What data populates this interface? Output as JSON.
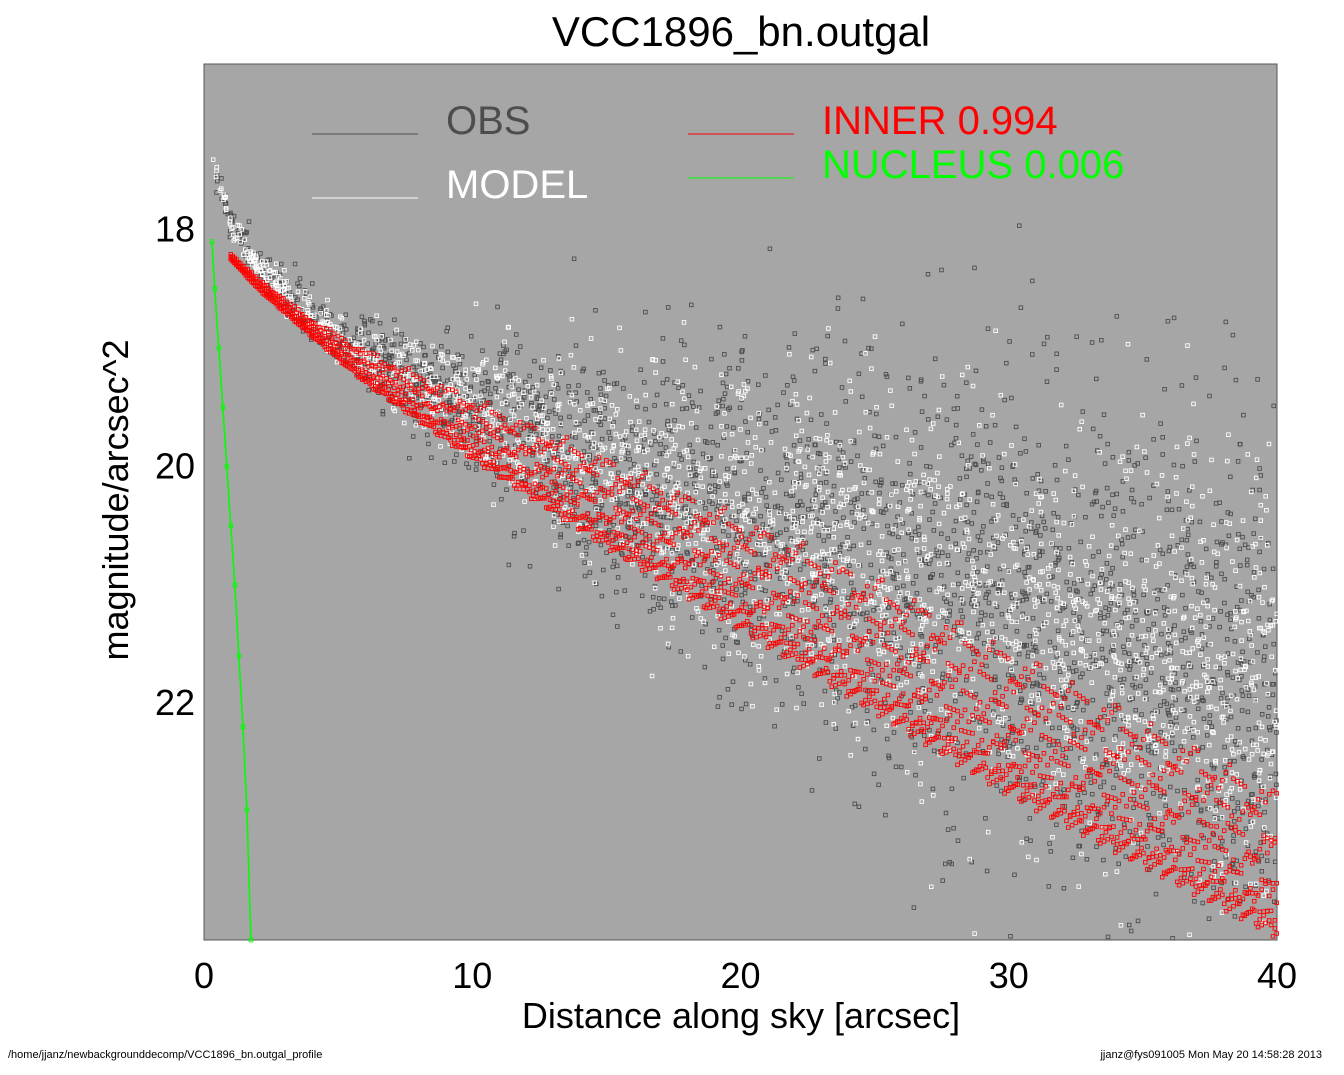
{
  "chart_data": {
    "type": "scatter",
    "title": "VCC1896_bn.outgal",
    "xlabel": "Distance along sky [arcsec]",
    "ylabel": "magnitude/arcsec^2",
    "xlim": [
      0,
      40
    ],
    "ylim": [
      24.0,
      16.6
    ],
    "y_inverted": true,
    "xticks": [
      0,
      10,
      20,
      30,
      40
    ],
    "yticks": [
      18,
      20,
      22
    ],
    "grid": false,
    "plot_background": "#a6a6a6",
    "legend": [
      {
        "label": "OBS",
        "color": "#4d4d4d",
        "position": "top-left"
      },
      {
        "label": "MODEL",
        "color": "#ffffff",
        "position": "top-left"
      },
      {
        "label": "INNER",
        "value": "0.994",
        "color": "#ff0000",
        "position": "top-right"
      },
      {
        "label": "NUCLEUS",
        "value": "0.006",
        "color": "#00ff00",
        "position": "top-right"
      }
    ],
    "series": [
      {
        "name": "OBS",
        "color": "#4d4d4d",
        "marker": "open-square",
        "trend": {
          "x": [
            0.3,
            1,
            2,
            4,
            6,
            10,
            15,
            20,
            25,
            30,
            35,
            40
          ],
          "y": [
            17.4,
            17.95,
            18.3,
            18.75,
            19.05,
            19.5,
            20.0,
            20.4,
            20.8,
            21.2,
            21.6,
            22.0
          ]
        },
        "scatter_sd": {
          "x": [
            0,
            5,
            10,
            20,
            40
          ],
          "y": [
            0.05,
            0.12,
            0.32,
            0.75,
            1.2
          ]
        }
      },
      {
        "name": "MODEL",
        "color": "#ffffff",
        "marker": "open-square",
        "trend": {
          "x": [
            0.3,
            1,
            2,
            4,
            6,
            10,
            15,
            20,
            25,
            30,
            35,
            40
          ],
          "y": [
            17.4,
            17.95,
            18.3,
            18.75,
            19.05,
            19.5,
            20.0,
            20.4,
            20.8,
            21.2,
            21.6,
            22.0
          ]
        },
        "scatter_sd": {
          "x": [
            0,
            5,
            10,
            20,
            40
          ],
          "y": [
            0.05,
            0.1,
            0.28,
            0.6,
            0.95
          ]
        }
      },
      {
        "name": "INNER",
        "color": "#ff0000",
        "marker": "open-square",
        "upper_edge": {
          "x": [
            1,
            2,
            4,
            6,
            10,
            15,
            20,
            25,
            30,
            35,
            40
          ],
          "y": [
            18.2,
            18.4,
            18.75,
            19.0,
            19.4,
            19.9,
            20.4,
            20.9,
            21.5,
            22.1,
            22.7
          ]
        },
        "lower_edge": {
          "x": [
            1,
            2,
            4,
            6,
            10,
            15,
            20,
            25,
            30,
            35,
            40
          ],
          "y": [
            18.25,
            18.5,
            18.9,
            19.3,
            19.95,
            20.7,
            21.4,
            22.1,
            22.8,
            23.4,
            24.0
          ]
        }
      },
      {
        "name": "NUCLEUS",
        "color": "#00ff00",
        "marker": "line+points",
        "x": [
          0.3,
          0.4,
          0.55,
          0.7,
          0.85,
          1.0,
          1.15,
          1.3,
          1.45,
          1.6,
          1.75
        ],
        "y": [
          18.1,
          18.5,
          19.0,
          19.5,
          20.0,
          20.5,
          21.0,
          21.6,
          22.2,
          22.9,
          24.0
        ]
      }
    ]
  },
  "footer": {
    "left": "/home/jjanz/newbackgrounddecomp/VCC1896_bn.outgal_profile",
    "right": "jjanz@fys091005  Mon May 20 14:58:28 2013"
  }
}
